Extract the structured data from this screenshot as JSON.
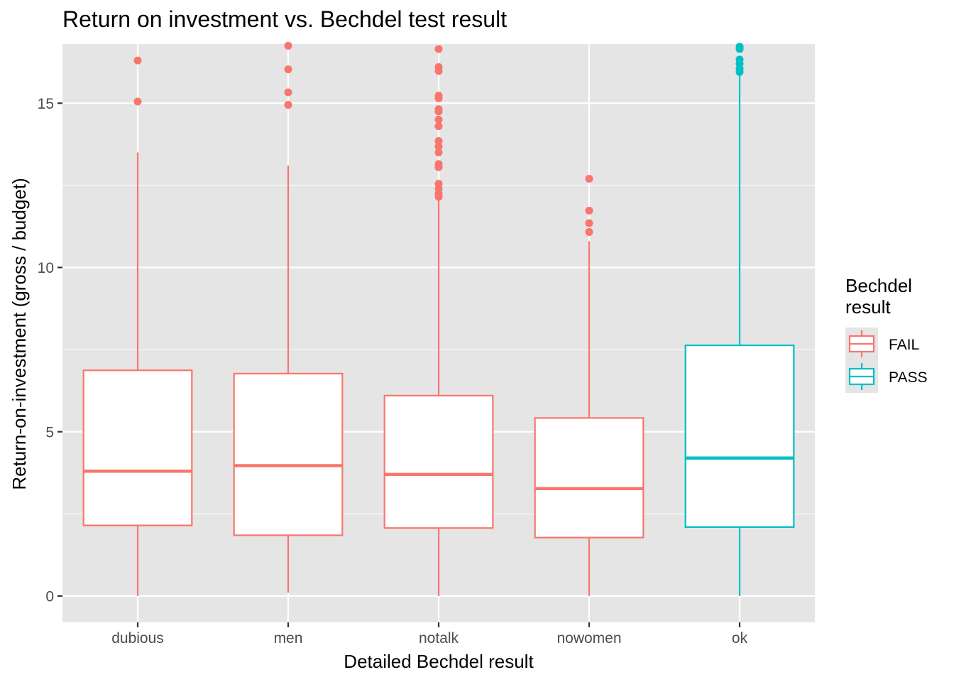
{
  "chart_data": {
    "type": "boxplot",
    "title": "Return on investment vs. Bechdel test result",
    "xlabel": "Detailed Bechdel result",
    "ylabel": "Return-on-investment (gross / budget)",
    "categories": [
      "dubious",
      "men",
      "notalk",
      "nowomen",
      "ok"
    ],
    "ylim": [
      -0.8,
      16.8
    ],
    "yticks": [
      0,
      5,
      10,
      15
    ],
    "grid": true,
    "legend": {
      "title_lines": [
        "Bechdel",
        "result"
      ],
      "placement": "right",
      "entries": [
        {
          "label": "FAIL",
          "color": "#F8766D"
        },
        {
          "label": "PASS",
          "color": "#00BFC4"
        }
      ]
    },
    "boxes": [
      {
        "category": "dubious",
        "group": "FAIL",
        "whisker_low": 0.0,
        "q1": 2.15,
        "median": 3.8,
        "q3": 6.87,
        "whisker_high": 13.5,
        "outliers": [
          15.05,
          16.3
        ]
      },
      {
        "category": "men",
        "group": "FAIL",
        "whisker_low": 0.1,
        "q1": 1.85,
        "median": 3.97,
        "q3": 6.77,
        "whisker_high": 13.1,
        "outliers": [
          14.95,
          15.33,
          16.03,
          16.75
        ]
      },
      {
        "category": "notalk",
        "group": "FAIL",
        "whisker_low": 0.0,
        "q1": 2.07,
        "median": 3.7,
        "q3": 6.1,
        "whisker_high": 12.1,
        "outliers": [
          12.15,
          12.25,
          12.4,
          12.55,
          13.05,
          13.15,
          13.5,
          13.68,
          13.85,
          14.3,
          14.5,
          14.75,
          14.82,
          15.15,
          15.23,
          15.98,
          16.1,
          16.65
        ]
      },
      {
        "category": "nowomen",
        "group": "FAIL",
        "whisker_low": 0.0,
        "q1": 1.78,
        "median": 3.27,
        "q3": 5.42,
        "whisker_high": 10.8,
        "outliers": [
          11.08,
          11.35,
          11.73,
          12.7
        ]
      },
      {
        "category": "ok",
        "group": "PASS",
        "whisker_low": 0.0,
        "q1": 2.1,
        "median": 4.2,
        "q3": 7.63,
        "whisker_high": 15.9,
        "outliers": [
          15.95,
          16.05,
          16.2,
          16.33,
          16.65,
          16.72
        ]
      }
    ]
  },
  "colors": {
    "panel": "#E5E5E5",
    "grid_major": "#FFFFFF",
    "fail": "#F8766D",
    "pass": "#00BFC4"
  }
}
